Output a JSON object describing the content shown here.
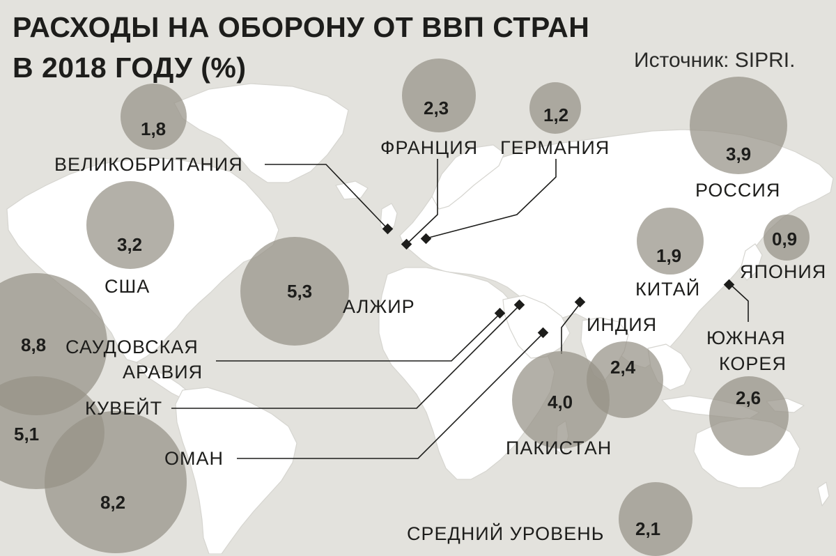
{
  "title": {
    "line1": "РАСХОДЫ НА ОБОРОНУ ОТ ВВП СТРАН",
    "line2": "В 2018 ГОДУ (%)"
  },
  "source": "Источник: SIPRI.",
  "colors": {
    "background": "#e3e2dd",
    "land": "#ffffff",
    "bubble": "#969287",
    "text": "#1d1d1b"
  },
  "countries": [
    {
      "id": "uk",
      "label": "ВЕЛИКОБРИТАНИЯ",
      "value": "1,8"
    },
    {
      "id": "france",
      "label": "ФРАНЦИЯ",
      "value": "2,3"
    },
    {
      "id": "germany",
      "label": "ГЕРМАНИЯ",
      "value": "1,2"
    },
    {
      "id": "russia",
      "label": "РОССИЯ",
      "value": "3,9"
    },
    {
      "id": "usa",
      "label": "США",
      "value": "3,2"
    },
    {
      "id": "algeria",
      "label": "АЛЖИР",
      "value": "5,3"
    },
    {
      "id": "china",
      "label": "КИТАЙ",
      "value": "1,9"
    },
    {
      "id": "japan",
      "label": "ЯПОНИЯ",
      "value": "0,9"
    },
    {
      "id": "saudi",
      "label": "САУДОВСКАЯ АРАВИЯ",
      "label_line1": "САУДОВСКАЯ",
      "label_line2": "АРАВИЯ",
      "value": "8,8"
    },
    {
      "id": "india",
      "label": "ИНДИЯ",
      "value": "2,4"
    },
    {
      "id": "south-korea",
      "label": "ЮЖНАЯ КОРЕЯ",
      "label_line1": "ЮЖНАЯ",
      "label_line2": "КОРЕЯ",
      "value": "2,6"
    },
    {
      "id": "kuwait",
      "label": "КУВЕЙТ",
      "value": "5,1"
    },
    {
      "id": "pakistan",
      "label": "ПАКИСТАН",
      "value": "4,0"
    },
    {
      "id": "oman",
      "label": "ОМАН",
      "value": "8,2"
    },
    {
      "id": "average",
      "label": "СРЕДНИЙ УРОВЕНЬ",
      "value": "2,1"
    }
  ]
}
